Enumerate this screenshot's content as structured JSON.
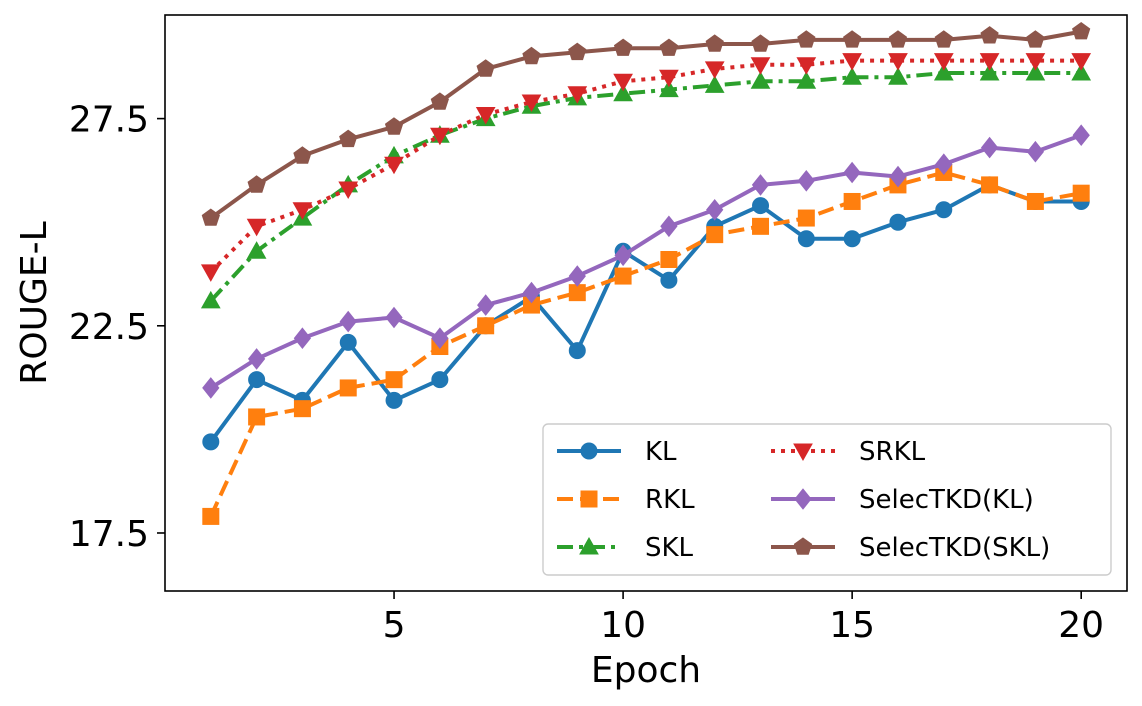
{
  "chart_data": {
    "type": "line",
    "xlabel": "Epoch",
    "ylabel": "ROUGE-L",
    "xlim": [
      0,
      21
    ],
    "ylim": [
      16.1,
      30.0
    ],
    "xticks": [
      5,
      10,
      15,
      20
    ],
    "yticks": [
      17.5,
      22.5,
      27.5
    ],
    "ytick_labels": [
      "17.5",
      "22.5",
      "27.5"
    ],
    "xtick_labels": [
      "5",
      "10",
      "15",
      "20"
    ],
    "grid": false,
    "legend_position": "lower-right",
    "x": [
      1,
      2,
      3,
      4,
      5,
      6,
      7,
      8,
      9,
      10,
      11,
      12,
      13,
      14,
      15,
      16,
      17,
      18,
      19,
      20
    ],
    "series": [
      {
        "name": "KL",
        "color": "#1f77b4",
        "line_style": "solid",
        "marker": "circle",
        "values": [
          19.7,
          21.2,
          20.7,
          22.1,
          20.7,
          21.2,
          22.5,
          23.2,
          21.9,
          24.3,
          23.6,
          24.9,
          25.4,
          24.6,
          24.6,
          25.0,
          25.3,
          25.9,
          25.5,
          25.5
        ]
      },
      {
        "name": "RKL",
        "color": "#ff7f0e",
        "line_style": "dashed",
        "marker": "square",
        "values": [
          17.9,
          20.3,
          20.5,
          21.0,
          21.2,
          22.0,
          22.5,
          23.0,
          23.3,
          23.7,
          24.1,
          24.7,
          24.9,
          25.1,
          25.5,
          25.9,
          26.2,
          25.9,
          25.5,
          25.7
        ]
      },
      {
        "name": "SKL",
        "color": "#2ca02c",
        "line_style": "dashdot",
        "marker": "triangle-up",
        "values": [
          23.1,
          24.3,
          25.1,
          25.9,
          26.6,
          27.1,
          27.5,
          27.8,
          28.0,
          28.1,
          28.2,
          28.3,
          28.4,
          28.4,
          28.5,
          28.5,
          28.6,
          28.6,
          28.6,
          28.6
        ]
      },
      {
        "name": "SRKL",
        "color": "#d62728",
        "line_style": "dotted",
        "marker": "triangle-down",
        "values": [
          23.8,
          24.9,
          25.3,
          25.8,
          26.4,
          27.1,
          27.6,
          27.9,
          28.1,
          28.4,
          28.5,
          28.7,
          28.8,
          28.8,
          28.9,
          28.9,
          28.9,
          28.9,
          28.9,
          28.9
        ]
      },
      {
        "name": "SelecTKD(KL)",
        "color": "#9467bd",
        "line_style": "solid",
        "marker": "diamond",
        "values": [
          21.0,
          21.7,
          22.2,
          22.6,
          22.7,
          22.2,
          23.0,
          23.3,
          23.7,
          24.2,
          24.9,
          25.3,
          25.9,
          26.0,
          26.2,
          26.1,
          26.4,
          26.8,
          26.7,
          27.1
        ]
      },
      {
        "name": "SelecTKD(SKL)",
        "color": "#8c564b",
        "line_style": "solid",
        "marker": "pentagon",
        "values": [
          25.1,
          25.9,
          26.6,
          27.0,
          27.3,
          27.9,
          28.7,
          29.0,
          29.1,
          29.2,
          29.2,
          29.3,
          29.3,
          29.4,
          29.4,
          29.4,
          29.4,
          29.5,
          29.4,
          29.6
        ]
      }
    ]
  }
}
